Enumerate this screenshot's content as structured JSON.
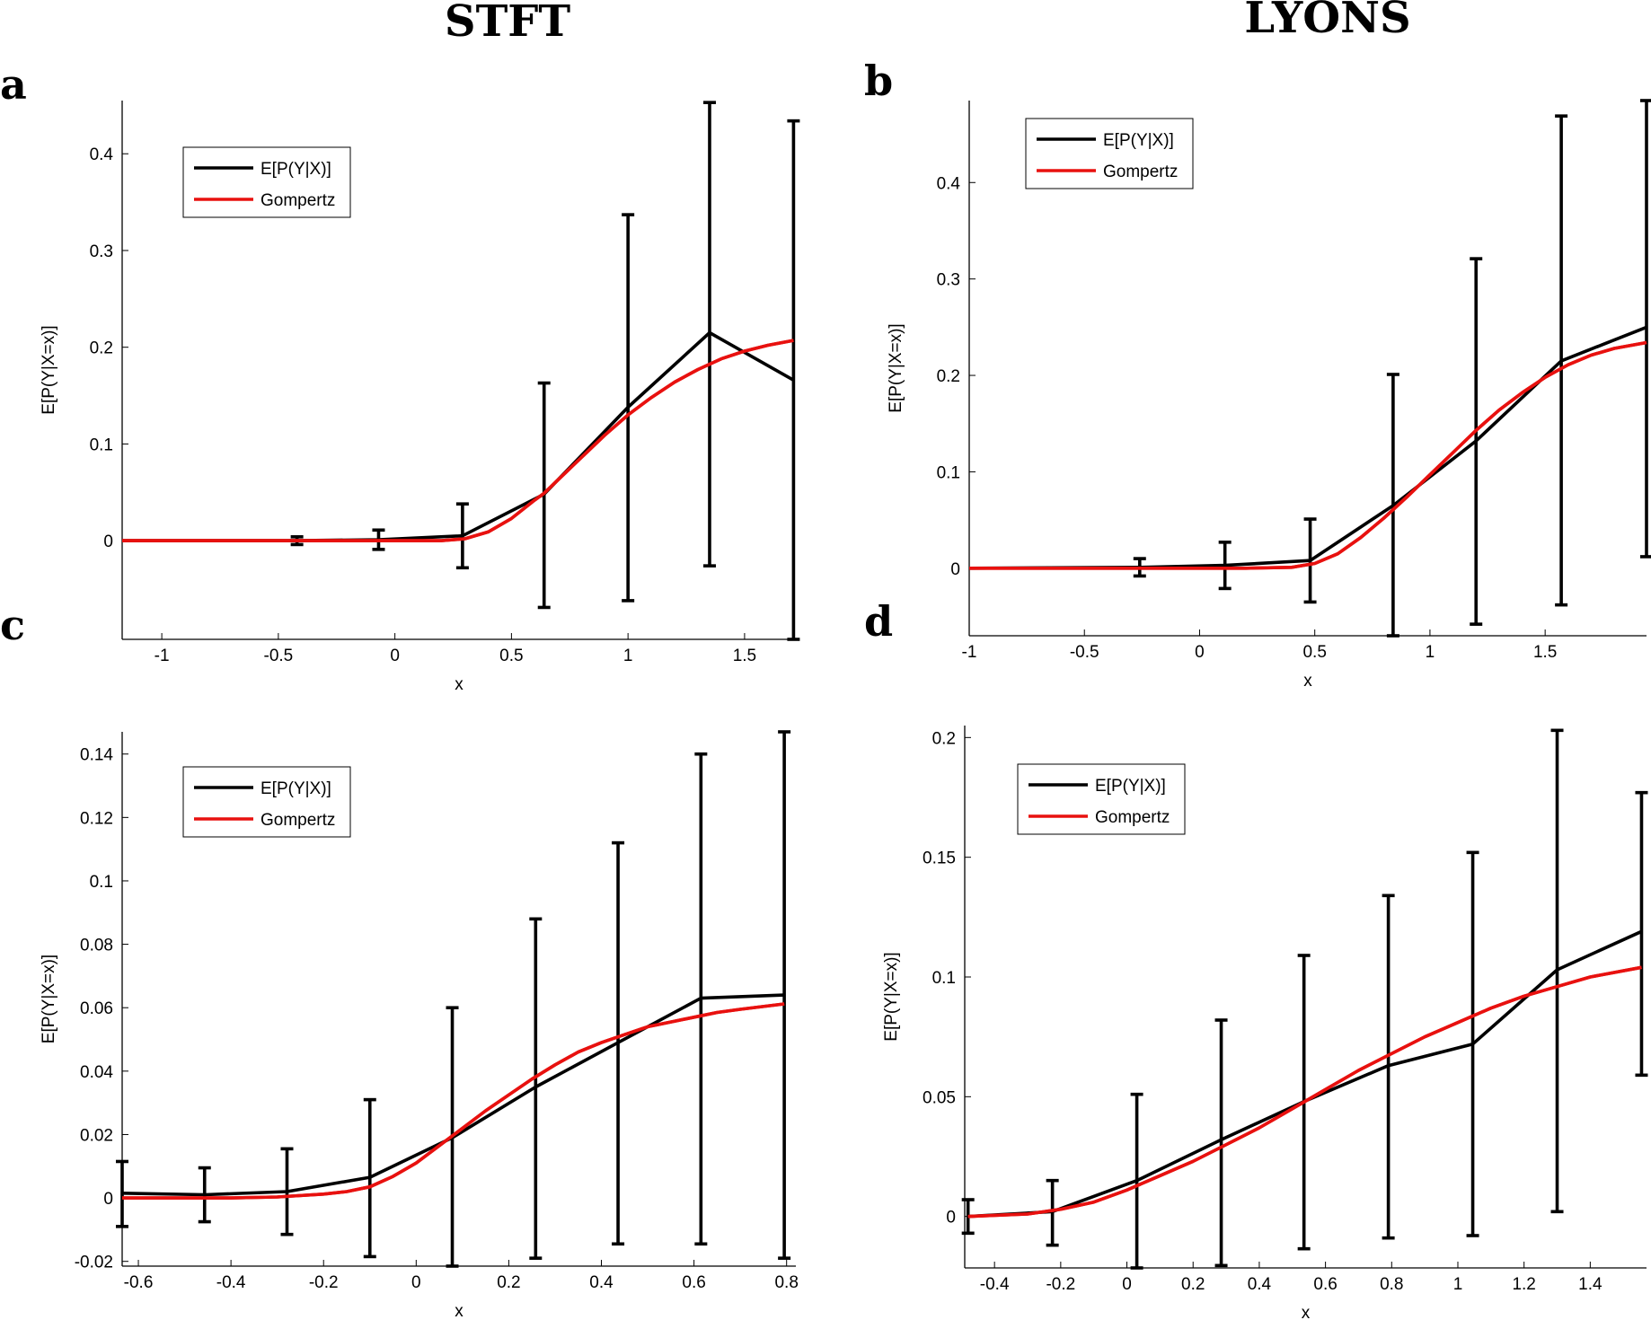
{
  "column_titles": [
    "STFT",
    "LYONS"
  ],
  "chart_data": [
    {
      "panel": "a",
      "type": "line",
      "xlabel": "x",
      "ylabel": "E[P(Y|X=x)]",
      "xlim": [
        -1.17,
        1.72
      ],
      "ylim": [
        -0.102,
        0.455
      ],
      "xticks": [
        -1,
        -0.5,
        0,
        0.5,
        1,
        1.5
      ],
      "xtick_labels": [
        "-1",
        "-0.5",
        "0",
        "0.5",
        "1",
        "1.5"
      ],
      "yticks": [
        0,
        0.1,
        0.2,
        0.3,
        0.4
      ],
      "ytick_labels": [
        "0",
        "0.1",
        "0.2",
        "0.3",
        "0.4"
      ],
      "legend": {
        "position": "top-left",
        "entries": [
          "E[P(Y|X)]",
          "Gompertz"
        ]
      },
      "series": [
        {
          "name": "E[P(Y|X)]",
          "color": "#000000",
          "kind": "errorline",
          "x": [
            -1.17,
            -0.42,
            -0.07,
            0.29,
            0.64,
            1.0,
            1.35,
            1.71
          ],
          "y": [
            0.0,
            0.0,
            0.001,
            0.005,
            0.048,
            0.138,
            0.215,
            0.166
          ],
          "err_low": [
            null,
            -0.004,
            -0.009,
            -0.028,
            -0.069,
            -0.062,
            -0.026,
            -0.102
          ],
          "err_high": [
            null,
            0.004,
            0.011,
            0.038,
            0.163,
            0.337,
            0.453,
            0.434
          ]
        },
        {
          "name": "Gompertz",
          "color": "#e8110f",
          "kind": "curve",
          "x": [
            -1.17,
            -0.6,
            -0.2,
            0.0,
            0.2,
            0.3,
            0.4,
            0.5,
            0.6,
            0.64,
            0.7,
            0.8,
            0.9,
            1.0,
            1.1,
            1.2,
            1.3,
            1.4,
            1.5,
            1.6,
            1.71
          ],
          "y": [
            0.0,
            0.0,
            0.0,
            0.0,
            0.0,
            0.002,
            0.009,
            0.023,
            0.042,
            0.049,
            0.063,
            0.086,
            0.109,
            0.13,
            0.148,
            0.164,
            0.177,
            0.188,
            0.196,
            0.202,
            0.207
          ]
        }
      ]
    },
    {
      "panel": "b",
      "type": "line",
      "xlabel": "x",
      "ylabel": "E[P(Y|X=x)]",
      "xlim": [
        -1.0,
        1.94
      ],
      "ylim": [
        -0.07,
        0.485
      ],
      "xticks": [
        -1,
        -0.5,
        0,
        0.5,
        1,
        1.5
      ],
      "xtick_labels": [
        "-1",
        "-0.5",
        "0",
        "0.5",
        "1",
        "1.5"
      ],
      "yticks": [
        0,
        0.1,
        0.2,
        0.3,
        0.4
      ],
      "ytick_labels": [
        "0",
        "0.1",
        "0.2",
        "0.3",
        "0.4"
      ],
      "legend": {
        "position": "top-left",
        "entries": [
          "E[P(Y|X)]",
          "Gompertz"
        ]
      },
      "series": [
        {
          "name": "E[P(Y|X)]",
          "color": "#000000",
          "kind": "errorline",
          "x": [
            -1.0,
            -0.26,
            0.11,
            0.48,
            0.84,
            1.2,
            1.57,
            1.94
          ],
          "y": [
            0.0,
            0.001,
            0.003,
            0.008,
            0.065,
            0.132,
            0.215,
            0.25
          ],
          "err_low": [
            null,
            -0.008,
            -0.021,
            -0.035,
            -0.07,
            -0.058,
            -0.038,
            0.012
          ],
          "err_high": [
            null,
            0.01,
            0.027,
            0.051,
            0.201,
            0.321,
            0.469,
            0.485
          ]
        },
        {
          "name": "Gompertz",
          "color": "#e8110f",
          "kind": "curve",
          "x": [
            -1.0,
            -0.5,
            0.0,
            0.2,
            0.4,
            0.5,
            0.6,
            0.7,
            0.8,
            0.9,
            1.0,
            1.1,
            1.2,
            1.3,
            1.4,
            1.5,
            1.6,
            1.7,
            1.8,
            1.94
          ],
          "y": [
            0.0,
            0.0,
            0.0,
            0.0,
            0.001,
            0.005,
            0.015,
            0.032,
            0.052,
            0.074,
            0.097,
            0.12,
            0.143,
            0.164,
            0.182,
            0.198,
            0.211,
            0.221,
            0.228,
            0.234
          ]
        }
      ]
    },
    {
      "panel": "c",
      "type": "line",
      "xlabel": "x",
      "ylabel": "E[P(Y|X=x)]",
      "xlim": [
        -0.635,
        0.82
      ],
      "ylim": [
        -0.0215,
        0.147
      ],
      "xticks": [
        -0.6,
        -0.4,
        -0.2,
        0,
        0.2,
        0.4,
        0.6,
        0.8
      ],
      "xtick_labels": [
        "-0.6",
        "-0.4",
        "-0.2",
        "0",
        "0.2",
        "0.4",
        "0.6",
        "0.8"
      ],
      "yticks": [
        -0.02,
        0,
        0.02,
        0.04,
        0.06,
        0.08,
        0.1,
        0.12,
        0.14
      ],
      "ytick_labels": [
        "-0.02",
        "0",
        "0.02",
        "0.04",
        "0.06",
        "0.08",
        "0.1",
        "0.12",
        "0.14"
      ],
      "legend": {
        "position": "top-left",
        "entries": [
          "E[P(Y|X)]",
          "Gompertz"
        ]
      },
      "series": [
        {
          "name": "E[P(Y|X)]",
          "color": "#000000",
          "kind": "errorline",
          "x": [
            -0.635,
            -0.457,
            -0.279,
            -0.1,
            0.078,
            0.258,
            0.436,
            0.615,
            0.795
          ],
          "y": [
            0.0015,
            0.001,
            0.002,
            0.0065,
            0.019,
            0.035,
            0.049,
            0.063,
            0.064
          ],
          "err_low": [
            -0.009,
            -0.0075,
            -0.0115,
            -0.0185,
            -0.0215,
            -0.019,
            -0.0145,
            -0.0145,
            -0.019
          ],
          "err_high": [
            0.0115,
            0.0095,
            0.0155,
            0.031,
            0.06,
            0.088,
            0.112,
            0.14,
            0.147
          ]
        },
        {
          "name": "Gompertz",
          "color": "#e8110f",
          "kind": "curve",
          "x": [
            -0.635,
            -0.4,
            -0.3,
            -0.2,
            -0.15,
            -0.1,
            -0.05,
            0.0,
            0.05,
            0.1,
            0.15,
            0.2,
            0.25,
            0.3,
            0.35,
            0.4,
            0.45,
            0.5,
            0.55,
            0.6,
            0.65,
            0.7,
            0.795
          ],
          "y": [
            0.0,
            0.0,
            0.0003,
            0.0012,
            0.002,
            0.0035,
            0.0068,
            0.011,
            0.0165,
            0.022,
            0.0275,
            0.0325,
            0.0375,
            0.042,
            0.046,
            0.049,
            0.0515,
            0.054,
            0.0555,
            0.057,
            0.0585,
            0.0595,
            0.0612
          ]
        }
      ]
    },
    {
      "panel": "d",
      "type": "line",
      "xlabel": "x",
      "ylabel": "E[P(Y|X=x)]",
      "xlim": [
        -0.49,
        1.57
      ],
      "ylim": [
        -0.0215,
        0.205
      ],
      "xticks": [
        -0.4,
        -0.2,
        0,
        0.2,
        0.4,
        0.6,
        0.8,
        1,
        1.2,
        1.4
      ],
      "xtick_labels": [
        "-0.4",
        "-0.2",
        "0",
        "0.2",
        "0.4",
        "0.6",
        "0.8",
        "1",
        "1.2",
        "1.4"
      ],
      "yticks": [
        0,
        0.05,
        0.1,
        0.15,
        0.2
      ],
      "ytick_labels": [
        "0",
        "0.05",
        "0.1",
        "0.15",
        "0.2"
      ],
      "legend": {
        "position": "top-left",
        "entries": [
          "E[P(Y|X)]",
          "Gompertz"
        ]
      },
      "series": [
        {
          "name": "E[P(Y|X)]",
          "color": "#000000",
          "kind": "errorline",
          "x": [
            -0.48,
            -0.225,
            0.03,
            0.285,
            0.535,
            0.79,
            1.045,
            1.3,
            1.555
          ],
          "y": [
            0.0,
            0.002,
            0.015,
            0.032,
            0.048,
            0.063,
            0.072,
            0.103,
            0.119
          ],
          "err_low": [
            -0.007,
            -0.012,
            -0.0215,
            -0.0205,
            -0.0135,
            -0.009,
            -0.008,
            0.002,
            0.059
          ],
          "err_high": [
            0.007,
            0.015,
            0.051,
            0.082,
            0.109,
            0.134,
            0.152,
            0.203,
            0.177
          ]
        },
        {
          "name": "Gompertz",
          "color": "#e8110f",
          "kind": "curve",
          "x": [
            -0.48,
            -0.3,
            -0.2,
            -0.1,
            0.0,
            0.1,
            0.2,
            0.3,
            0.4,
            0.5,
            0.6,
            0.7,
            0.8,
            0.9,
            1.0,
            1.1,
            1.2,
            1.3,
            1.4,
            1.555
          ],
          "y": [
            0.0,
            0.001,
            0.003,
            0.006,
            0.011,
            0.017,
            0.023,
            0.03,
            0.037,
            0.045,
            0.053,
            0.061,
            0.068,
            0.075,
            0.081,
            0.087,
            0.092,
            0.096,
            0.1,
            0.104
          ]
        }
      ]
    }
  ]
}
